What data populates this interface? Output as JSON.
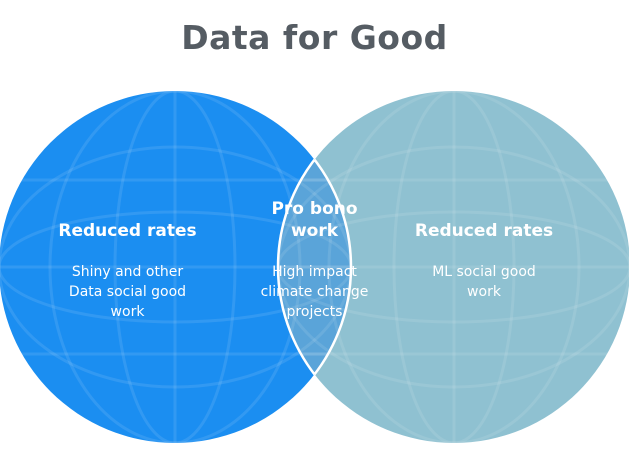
{
  "title": "Data for Good",
  "colors": {
    "left_circle": "#1b8ef1",
    "right_circle": "#8fc1d1",
    "overlap": "#5aa4d9",
    "title_text": "#555c63",
    "region_text": "#ffffff"
  },
  "regions": {
    "left": {
      "heading": "Reduced rates",
      "body": [
        "Shiny and other",
        "Data social good",
        "work"
      ]
    },
    "center": {
      "heading": [
        "Pro bono",
        "work"
      ],
      "body": [
        "High impact",
        "climate change",
        "projects"
      ]
    },
    "right": {
      "heading": "Reduced rates",
      "body": [
        "ML social good",
        "work"
      ]
    }
  }
}
